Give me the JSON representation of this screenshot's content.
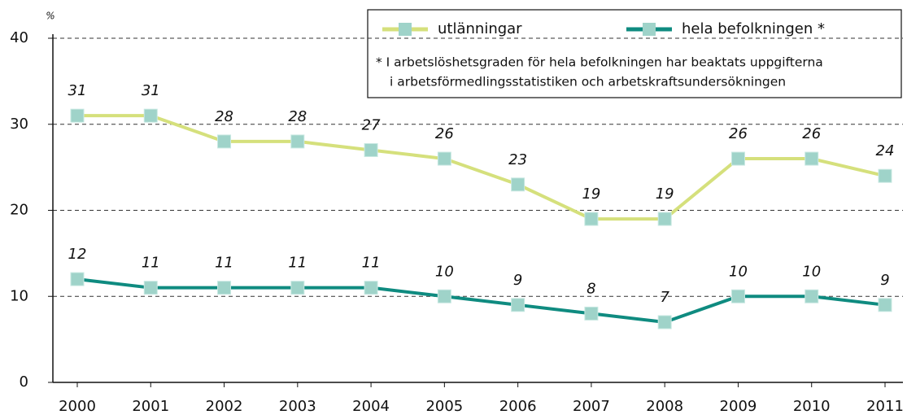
{
  "chart_data": {
    "type": "line",
    "ylabel": "%",
    "categories": [
      "2000",
      "2001",
      "2002",
      "2003",
      "2004",
      "2005",
      "2006",
      "2007",
      "2008",
      "2009",
      "2010",
      "2011"
    ],
    "series": [
      {
        "name": "utlänningar",
        "color": "#d5e07c",
        "marker_color": "#9fd3c9",
        "values": [
          31,
          31,
          28,
          28,
          27,
          26,
          23,
          19,
          19,
          26,
          26,
          24
        ]
      },
      {
        "name": "hela befolkningen *",
        "color": "#0f8b80",
        "marker_color": "#9fd3c9",
        "values": [
          12,
          11,
          11,
          11,
          11,
          10,
          9,
          8,
          7,
          10,
          10,
          9
        ]
      }
    ],
    "note": [
      "* I arbetslöshetsgraden för hela befolkningen har beaktats uppgifterna",
      "i arbetsförmedlingsstatistiken och arbetskraftsundersökningen"
    ],
    "ylim": [
      0,
      40
    ],
    "yticks": [
      0,
      10,
      20,
      30,
      40
    ],
    "grid": true
  }
}
